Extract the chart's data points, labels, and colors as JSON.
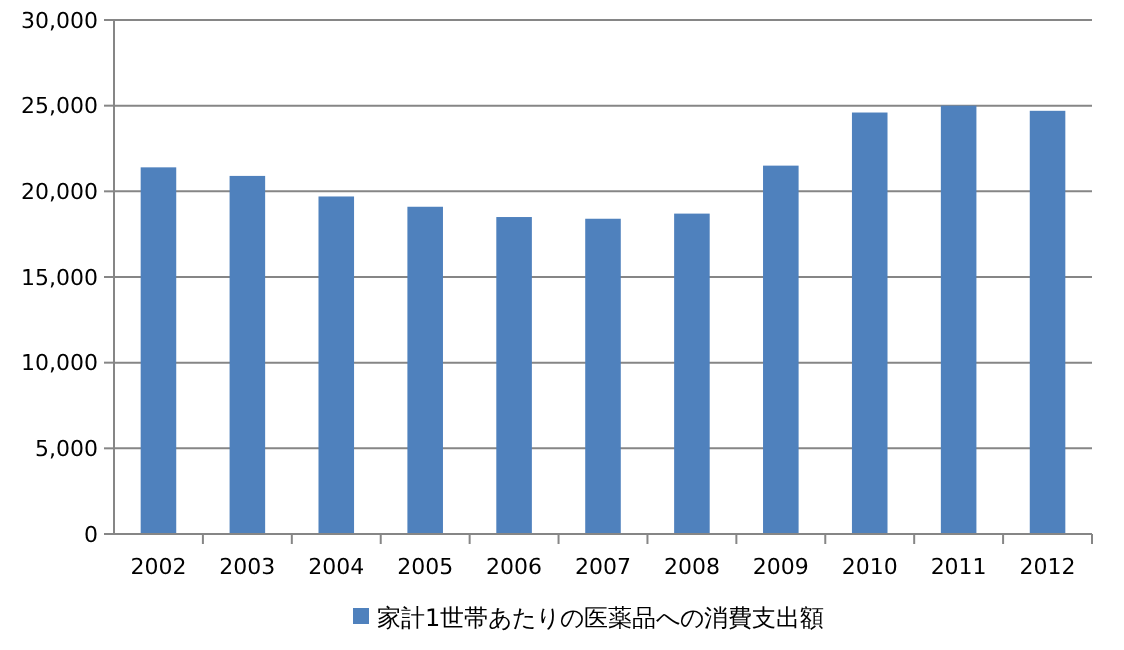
{
  "chart_data": {
    "type": "bar",
    "categories": [
      "2002",
      "2003",
      "2004",
      "2005",
      "2006",
      "2007",
      "2008",
      "2009",
      "2010",
      "2011",
      "2012"
    ],
    "series": [
      {
        "name": "家計1世帯あたりの医薬品への消費支出額",
        "color": "#4f81bd",
        "values": [
          21400,
          20900,
          19700,
          19100,
          18500,
          18400,
          18700,
          21500,
          24600,
          25000,
          24700
        ]
      }
    ],
    "ylim": [
      0,
      30000
    ],
    "yticks": [
      {
        "value": 0,
        "label": "0"
      },
      {
        "value": 5000,
        "label": "5,000"
      },
      {
        "value": 10000,
        "label": "10,000"
      },
      {
        "value": 15000,
        "label": "15,000"
      },
      {
        "value": 20000,
        "label": "20,000"
      },
      {
        "value": 25000,
        "label": "25,000"
      },
      {
        "value": 30000,
        "label": "30,000"
      }
    ],
    "grid": "y",
    "legend": "bottom"
  }
}
